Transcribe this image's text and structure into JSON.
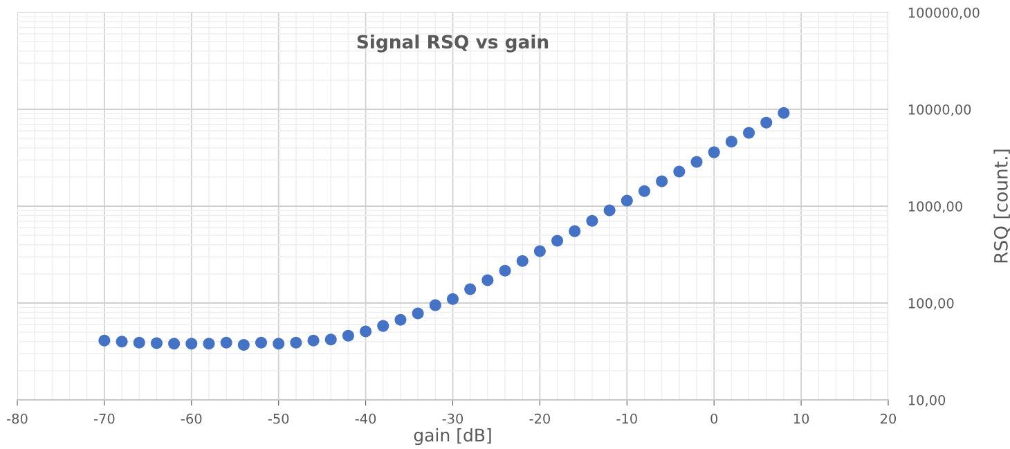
{
  "chart_data": {
    "type": "scatter",
    "title": "Signal RSQ vs gain",
    "xlabel": "gain [dB]",
    "ylabel": "RSQ [count.]",
    "x": [
      -70,
      -68,
      -66,
      -64,
      -62,
      -60,
      -58,
      -56,
      -54,
      -52,
      -50,
      -48,
      -46,
      -44,
      -42,
      -40,
      -38,
      -36,
      -34,
      -32,
      -30,
      -28,
      -26,
      -24,
      -22,
      -20,
      -18,
      -16,
      -14,
      -12,
      -10,
      -8,
      -6,
      -4,
      -2,
      0,
      2,
      4,
      6,
      8
    ],
    "series": [
      {
        "color": "#4472c4",
        "values": [
          41,
          40,
          39,
          38.5,
          38,
          38,
          38,
          39,
          37,
          39,
          38,
          39,
          41,
          42,
          46,
          51,
          58,
          67,
          78,
          95,
          110,
          139,
          172,
          216,
          272,
          343,
          439,
          552,
          706,
          907,
          1140,
          1430,
          1810,
          2280,
          2870,
          3600,
          4640,
          5720,
          7300,
          9170
        ]
      }
    ],
    "log": "y",
    "xlim": [
      -80,
      20
    ],
    "xticks": [
      -80,
      -70,
      -60,
      -50,
      -40,
      -30,
      -20,
      -10,
      0,
      10,
      20
    ],
    "ylim": [
      10,
      100000
    ],
    "yticks": [
      {
        "value": 10,
        "label": "10,00"
      },
      {
        "value": 100,
        "label": "100,00"
      },
      {
        "value": 1000,
        "label": "1000,00"
      },
      {
        "value": 10000,
        "label": "10000,00"
      },
      {
        "value": 100000,
        "label": "100000,00"
      }
    ],
    "grid": true,
    "marker": "circle"
  }
}
